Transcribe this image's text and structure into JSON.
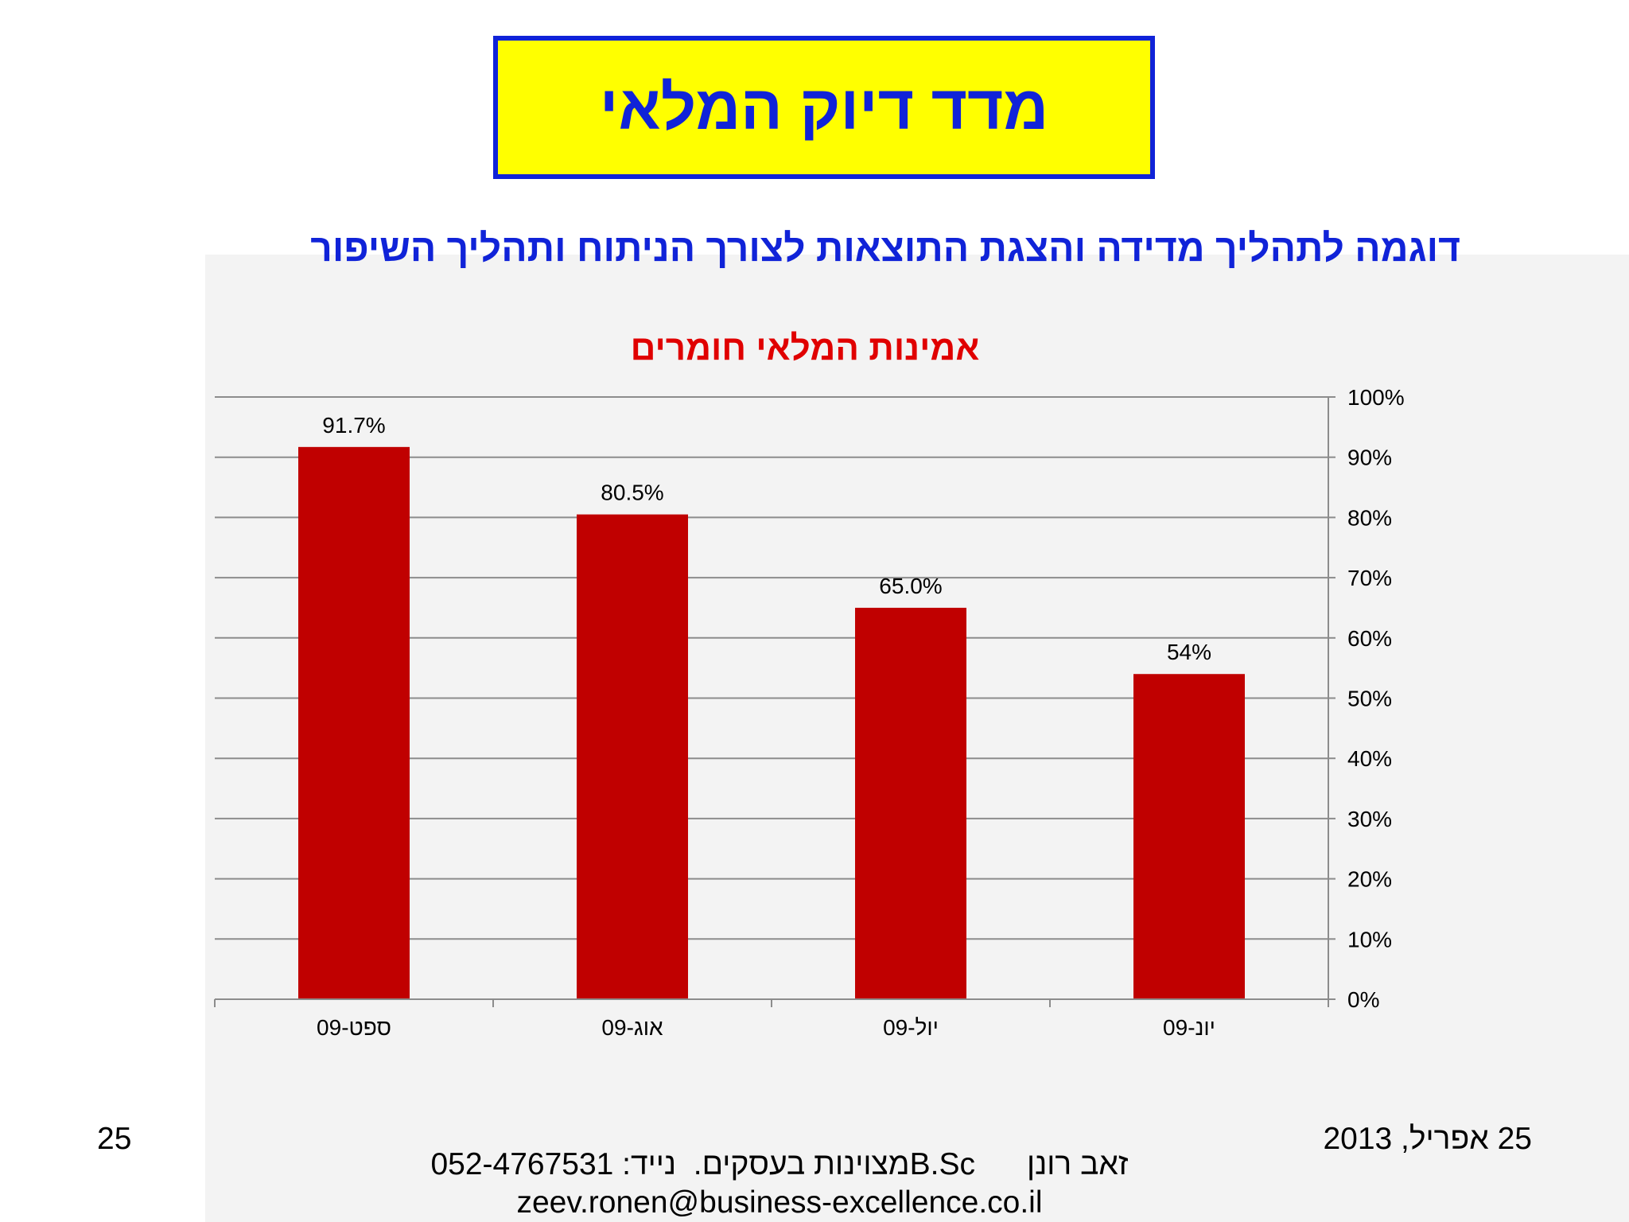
{
  "slide": {
    "title": "מדד דיוק המלאי",
    "subtitle": "דוגמה לתהליך מדידה והצגת התוצאות לצורך הניתוח ותהליך השיפור"
  },
  "footer": {
    "date": "25 אפריל, 2013",
    "page_number": "25",
    "author_line": "זאב רונן      B.Scמצוינות בעסקים.  נייד: 052-4767531",
    "email": "zeev.ronen@business-excellence.co.il"
  },
  "colors": {
    "title_bg": "#ffff00",
    "title_border": "#1023d8",
    "title_text": "#1023d8",
    "chart_title": "#e00000",
    "bar": "#c00000"
  },
  "chart_data": {
    "type": "bar",
    "title": "אמינות המלאי חומרים",
    "categories": [
      "ספט-09",
      "אוג-09",
      "יול-09",
      "יונ-09"
    ],
    "values": [
      91.7,
      80.5,
      65.0,
      54.0
    ],
    "data_labels": [
      "91.7%",
      "80.5%",
      "65.0%",
      "54%"
    ],
    "ylim": [
      0,
      100
    ],
    "yticks": [
      "0%",
      "10%",
      "20%",
      "30%",
      "40%",
      "50%",
      "60%",
      "70%",
      "80%",
      "90%",
      "100%"
    ],
    "y_axis_side": "right",
    "grid": true,
    "xlabel": "",
    "ylabel": ""
  }
}
